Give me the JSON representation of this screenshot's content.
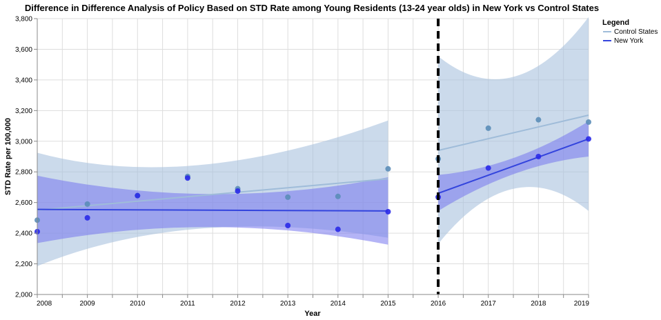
{
  "chart_data": {
    "type": "scatter",
    "title": "Difference in Difference Analysis of Policy Based on STD Rate among Young Residents (13-24 year olds) in New York vs Control States",
    "xlabel": "Year",
    "ylabel": "STD Rate per 100,000",
    "xlim": [
      2008,
      2019
    ],
    "ylim": [
      2000,
      3800
    ],
    "x_ticks": [
      "2008",
      "2009",
      "2010",
      "2011",
      "2012",
      "2013",
      "2014",
      "2015",
      "2016",
      "2017",
      "2018",
      "2019"
    ],
    "y_ticks": [
      "2,000",
      "2,200",
      "2,400",
      "2,600",
      "2,800",
      "3,000",
      "3,200",
      "3,400",
      "3,600",
      "3,800"
    ],
    "y_tick_values": [
      2000,
      2200,
      2400,
      2600,
      2800,
      3000,
      3200,
      3400,
      3600,
      3800
    ],
    "policy_year": 2016,
    "grid": true,
    "legend": {
      "title": "Legend",
      "placement": "right",
      "entries": [
        "Control States",
        "New York"
      ]
    },
    "series": [
      {
        "name": "Control States",
        "color": "#9fbcd9",
        "point_color": "#5b8db8",
        "band_color": "#a8c2de",
        "x": [
          2008,
          2009,
          2010,
          2011,
          2012,
          2013,
          2014,
          2015,
          2016,
          2017,
          2018,
          2019
        ],
        "y": [
          2485,
          2590,
          2645,
          2770,
          2690,
          2635,
          2640,
          2820,
          2885,
          3085,
          3140,
          3125
        ],
        "pre_fit": {
          "x": [
            2008,
            2015
          ],
          "y": [
            2550,
            2755
          ],
          "lower": [
            2185,
            2370
          ],
          "upper": [
            2925,
            3135
          ]
        },
        "post_fit": {
          "x": [
            2016,
            2019
          ],
          "y": [
            2940,
            3170
          ],
          "lower": [
            2330,
            2545
          ],
          "upper": [
            3555,
            3810
          ]
        },
        "band_mid": {
          "x": [
            2011,
            2017.5
          ],
          "lower": [
            2430,
            2690
          ],
          "upper": [
            2845,
            3420
          ]
        }
      },
      {
        "name": "New York",
        "color": "#3344dd",
        "point_color": "#2a2ae8",
        "band_color": "#7777ee",
        "x": [
          2008,
          2009,
          2010,
          2011,
          2012,
          2013,
          2014,
          2015,
          2016,
          2017,
          2018,
          2019
        ],
        "y": [
          2410,
          2500,
          2645,
          2760,
          2675,
          2450,
          2425,
          2540,
          2635,
          2825,
          2900,
          3015
        ],
        "pre_fit": {
          "x": [
            2008,
            2015
          ],
          "y": [
            2555,
            2545
          ],
          "lower": [
            2335,
            2325
          ],
          "upper": [
            2775,
            2765
          ]
        },
        "post_fit": {
          "x": [
            2016,
            2019
          ],
          "y": [
            2660,
            3015
          ],
          "lower": [
            2545,
            2900
          ],
          "upper": [
            2780,
            3130
          ]
        },
        "band_mid": {
          "x": [
            2011.5,
            2017.5
          ],
          "lower": [
            2440,
            2785
          ],
          "upper": [
            2655,
            2890
          ]
        }
      }
    ]
  }
}
